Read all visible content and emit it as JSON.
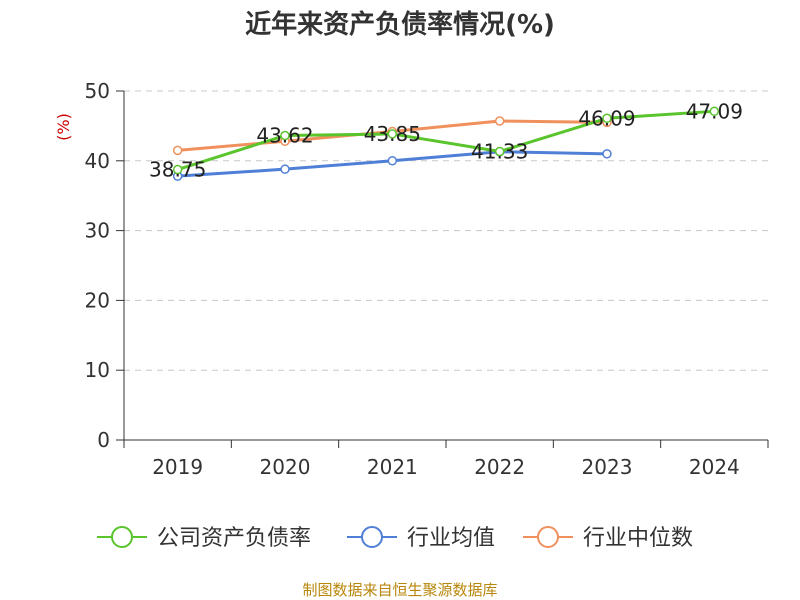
{
  "chart_data": {
    "type": "line",
    "title": "近年来资产负债率情况(%)",
    "ylabel": "(%)",
    "xlabel": "",
    "categories": [
      "2019",
      "2020",
      "2021",
      "2022",
      "2023",
      "2024"
    ],
    "ylim": [
      0,
      50
    ],
    "yticks": [
      "0",
      "10",
      "20",
      "30",
      "40",
      "50"
    ],
    "grid": true,
    "legend_position": "bottom",
    "series": [
      {
        "name": "公司资产负债率",
        "color": "#5ac42c",
        "values": [
          38.75,
          43.62,
          43.85,
          41.33,
          46.09,
          47.09
        ],
        "labels": [
          "38.75",
          "43.62",
          "43.85",
          "41.33",
          "46.09",
          "47.09"
        ]
      },
      {
        "name": "行业均值",
        "color": "#4f7fd6",
        "values": [
          37.8,
          38.8,
          40.0,
          41.3,
          41.0,
          null
        ]
      },
      {
        "name": "行业中位数",
        "color": "#f0915d",
        "values": [
          41.5,
          42.8,
          44.2,
          45.7,
          45.5,
          null
        ]
      }
    ]
  },
  "source": "制图数据来自恒生聚源数据库"
}
